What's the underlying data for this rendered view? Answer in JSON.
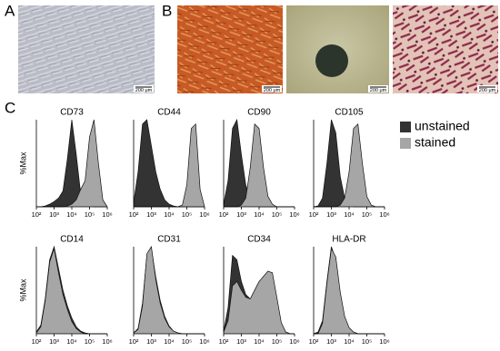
{
  "panels": [
    {
      "label": "A",
      "scale_bars": [
        "200 μm"
      ]
    },
    {
      "label": "B",
      "scale_bars": [
        "200 μm",
        "200 μm",
        "200 μm"
      ]
    },
    {
      "label": "C"
    }
  ],
  "chart_data": [
    {
      "type": "area",
      "title": "CD73",
      "ylabel": "%Max",
      "xlog": true,
      "xlim": [
        100,
        1000000
      ],
      "ylim": [
        0,
        100
      ],
      "xticks": [
        {
          "value": 100,
          "label": "10²"
        },
        {
          "value": 1000,
          "label": "10³"
        },
        {
          "value": 10000,
          "label": "10⁴"
        },
        {
          "value": 100000,
          "label": "10⁵"
        },
        {
          "value": 1000000,
          "label": "10⁶"
        }
      ],
      "x": [
        100,
        178,
        316,
        562,
        1000,
        1778,
        3162,
        5623,
        10000,
        17783,
        31623,
        56234,
        100000,
        177828,
        316228,
        562341,
        1000000
      ],
      "legend": "right",
      "series": [
        {
          "name": "unstained",
          "color": "#333333",
          "values": [
            0,
            0,
            1,
            3,
            6,
            10,
            18,
            55,
            100,
            60,
            15,
            3,
            1,
            0,
            0,
            0,
            0
          ]
        },
        {
          "name": "stained",
          "color": "#a6a6a6",
          "values": [
            0,
            0,
            0,
            0,
            0,
            0,
            0,
            1,
            3,
            8,
            20,
            30,
            80,
            100,
            50,
            8,
            0
          ]
        }
      ]
    },
    {
      "type": "area",
      "title": "CD44",
      "xlog": true,
      "xlim": [
        100,
        1000000
      ],
      "ylim": [
        0,
        100
      ],
      "xticks": [
        {
          "value": 100,
          "label": "10²"
        },
        {
          "value": 1000,
          "label": "10³"
        },
        {
          "value": 10000,
          "label": "10⁴"
        },
        {
          "value": 100000,
          "label": "10⁵"
        },
        {
          "value": 1000000,
          "label": "10⁶"
        }
      ],
      "x": [
        100,
        178,
        316,
        562,
        1000,
        1778,
        3162,
        5623,
        10000,
        17783,
        31623,
        56234,
        100000,
        177828,
        316228,
        562341,
        1000000
      ],
      "series": [
        {
          "name": "unstained",
          "color": "#333333",
          "values": [
            5,
            40,
            95,
            100,
            70,
            40,
            20,
            8,
            3,
            1,
            0,
            0,
            0,
            0,
            0,
            0,
            0
          ]
        },
        {
          "name": "stained",
          "color": "#a6a6a6",
          "values": [
            0,
            0,
            0,
            0,
            0,
            0,
            0,
            0,
            0,
            0,
            0,
            2,
            25,
            90,
            95,
            20,
            0
          ]
        }
      ]
    },
    {
      "type": "area",
      "title": "CD90",
      "xlog": true,
      "xlim": [
        100,
        1000000
      ],
      "ylim": [
        0,
        100
      ],
      "xticks": [
        {
          "value": 100,
          "label": "10²"
        },
        {
          "value": 1000,
          "label": "10³"
        },
        {
          "value": 10000,
          "label": "10⁴"
        },
        {
          "value": 100000,
          "label": "10⁵"
        },
        {
          "value": 1000000,
          "label": "10⁶"
        }
      ],
      "x": [
        100,
        178,
        316,
        562,
        1000,
        1778,
        3162,
        5623,
        10000,
        17783,
        31623,
        56234,
        100000,
        177828,
        316228,
        562341,
        1000000
      ],
      "series": [
        {
          "name": "unstained",
          "color": "#333333",
          "values": [
            3,
            30,
            90,
            100,
            60,
            25,
            8,
            2,
            0,
            0,
            0,
            0,
            0,
            0,
            0,
            0,
            0
          ]
        },
        {
          "name": "stained",
          "color": "#a6a6a6",
          "values": [
            0,
            0,
            0,
            0,
            2,
            10,
            45,
            95,
            90,
            45,
            12,
            3,
            0,
            0,
            0,
            0,
            0
          ]
        }
      ]
    },
    {
      "type": "area",
      "title": "CD105",
      "xlog": true,
      "xlim": [
        100,
        1000000
      ],
      "ylim": [
        0,
        100
      ],
      "xticks": [
        {
          "value": 100,
          "label": "10²"
        },
        {
          "value": 1000,
          "label": "10³"
        },
        {
          "value": 10000,
          "label": "10⁴"
        },
        {
          "value": 100000,
          "label": "10⁵"
        },
        {
          "value": 1000000,
          "label": "10⁶"
        }
      ],
      "x": [
        100,
        178,
        316,
        562,
        1000,
        1778,
        3162,
        5623,
        10000,
        17783,
        31623,
        56234,
        100000,
        177828,
        316228,
        562341,
        1000000
      ],
      "series": [
        {
          "name": "unstained",
          "color": "#333333",
          "values": [
            0,
            1,
            10,
            50,
            100,
            85,
            35,
            10,
            2,
            0,
            0,
            0,
            0,
            0,
            0,
            0,
            0
          ]
        },
        {
          "name": "stained",
          "color": "#a6a6a6",
          "values": [
            0,
            0,
            0,
            0,
            0,
            0,
            2,
            10,
            40,
            90,
            95,
            50,
            12,
            2,
            0,
            0,
            0
          ]
        }
      ]
    },
    {
      "type": "area",
      "title": "CD14",
      "ylabel": "%Max",
      "xlog": true,
      "xlim": [
        100,
        1000000
      ],
      "ylim": [
        0,
        100
      ],
      "xticks": [
        {
          "value": 100,
          "label": "10²"
        },
        {
          "value": 1000,
          "label": "10³"
        },
        {
          "value": 10000,
          "label": "10⁴"
        },
        {
          "value": 100000,
          "label": "10⁵"
        },
        {
          "value": 1000000,
          "label": "10⁶"
        }
      ],
      "x": [
        100,
        178,
        316,
        562,
        1000,
        1778,
        3162,
        5623,
        10000,
        17783,
        31623,
        56234,
        100000,
        177828,
        316228,
        562341,
        1000000
      ],
      "series": [
        {
          "name": "unstained",
          "color": "#333333",
          "values": [
            2,
            10,
            40,
            85,
            100,
            75,
            50,
            32,
            18,
            8,
            3,
            1,
            0,
            0,
            0,
            0,
            0
          ]
        },
        {
          "name": "stained",
          "color": "#a6a6a6",
          "values": [
            1,
            8,
            38,
            82,
            98,
            70,
            45,
            28,
            14,
            6,
            2,
            0,
            0,
            0,
            0,
            0,
            0
          ]
        }
      ]
    },
    {
      "type": "area",
      "title": "CD31",
      "xlog": true,
      "xlim": [
        100,
        1000000
      ],
      "ylim": [
        0,
        100
      ],
      "xticks": [
        {
          "value": 100,
          "label": "10²"
        },
        {
          "value": 1000,
          "label": "10³"
        },
        {
          "value": 10000,
          "label": "10⁴"
        },
        {
          "value": 100000,
          "label": "10⁵"
        },
        {
          "value": 1000000,
          "label": "10⁶"
        }
      ],
      "x": [
        100,
        178,
        316,
        562,
        1000,
        1778,
        3162,
        5623,
        10000,
        17783,
        31623,
        56234,
        100000,
        177828,
        316228,
        562341,
        1000000
      ],
      "series": [
        {
          "name": "unstained",
          "color": "#333333",
          "values": [
            1,
            6,
            35,
            90,
            98,
            65,
            38,
            20,
            9,
            3,
            1,
            0,
            0,
            0,
            0,
            0,
            0
          ]
        },
        {
          "name": "stained",
          "color": "#a6a6a6",
          "values": [
            1,
            5,
            32,
            92,
            100,
            62,
            35,
            18,
            8,
            3,
            1,
            0,
            0,
            0,
            0,
            0,
            0
          ]
        }
      ]
    },
    {
      "type": "area",
      "title": "CD34",
      "xlog": true,
      "xlim": [
        100,
        1000000
      ],
      "ylim": [
        0,
        100
      ],
      "xticks": [
        {
          "value": 100,
          "label": "10²"
        },
        {
          "value": 1000,
          "label": "10³"
        },
        {
          "value": 10000,
          "label": "10⁴"
        },
        {
          "value": 100000,
          "label": "10⁵"
        },
        {
          "value": 1000000,
          "label": "10⁶"
        }
      ],
      "x": [
        100,
        178,
        316,
        562,
        1000,
        1778,
        3162,
        5623,
        10000,
        17783,
        31623,
        56234,
        100000,
        177828,
        316228,
        562341,
        1000000
      ],
      "series": [
        {
          "name": "unstained",
          "color": "#333333",
          "values": [
            3,
            30,
            90,
            85,
            60,
            45,
            40,
            50,
            60,
            65,
            70,
            68,
            40,
            12,
            2,
            0,
            0
          ]
        },
        {
          "name": "stained",
          "color": "#a6a6a6",
          "values": [
            2,
            15,
            55,
            60,
            50,
            42,
            40,
            50,
            60,
            66,
            72,
            70,
            42,
            13,
            2,
            0,
            0
          ]
        }
      ]
    },
    {
      "type": "area",
      "title": "HLA-DR",
      "xlog": true,
      "xlim": [
        100,
        1000000
      ],
      "ylim": [
        0,
        100
      ],
      "xticks": [
        {
          "value": 100,
          "label": "10²"
        },
        {
          "value": 1000,
          "label": "10³"
        },
        {
          "value": 10000,
          "label": "10⁴"
        },
        {
          "value": 100000,
          "label": "10⁵"
        },
        {
          "value": 1000000,
          "label": "10⁶"
        }
      ],
      "x": [
        100,
        178,
        316,
        562,
        1000,
        1778,
        3162,
        5623,
        10000,
        17783,
        31623,
        56234,
        100000,
        177828,
        316228,
        562341,
        1000000
      ],
      "series": [
        {
          "name": "unstained",
          "color": "#333333",
          "values": [
            0,
            2,
            15,
            60,
            100,
            85,
            45,
            18,
            6,
            2,
            0,
            0,
            0,
            0,
            0,
            0,
            0
          ]
        },
        {
          "name": "stained",
          "color": "#a6a6a6",
          "values": [
            0,
            0,
            12,
            58,
            98,
            88,
            48,
            20,
            7,
            2,
            0,
            0,
            0,
            0,
            0,
            0,
            0
          ]
        }
      ]
    }
  ]
}
